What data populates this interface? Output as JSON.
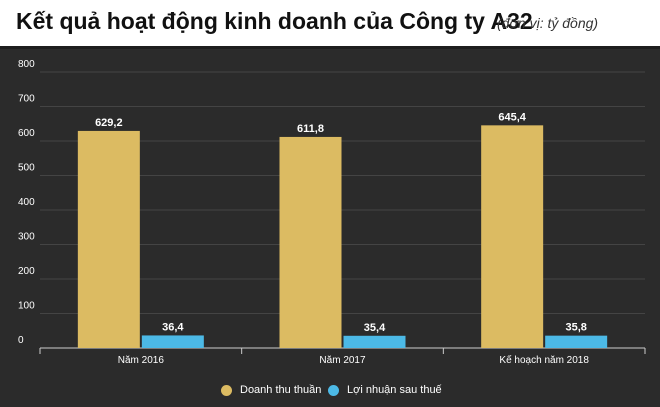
{
  "header": {
    "title": "Kết quả hoạt động kinh doanh của Công ty A32",
    "unit": "(đơn vị: tỷ đồng)"
  },
  "colors": {
    "revenue": "#dcbb62",
    "profit": "#4cb9e6",
    "grid": "#444444",
    "axis": "#cccccc",
    "text": "#ffffff",
    "header_bg": "#ffffff"
  },
  "chart_data": {
    "type": "bar",
    "title": "Kết quả hoạt động kinh doanh của Công ty A32",
    "subtitle": "(đơn vị: tỷ đồng)",
    "categories": [
      "Năm 2016",
      "Năm 2017",
      "Kế hoạch năm 2018"
    ],
    "series": [
      {
        "name": "Doanh thu thuần",
        "values": [
          629.2,
          611.8,
          645.4
        ],
        "labels": [
          "629,2",
          "611,8",
          "645,4"
        ],
        "color": "#dcbb62"
      },
      {
        "name": "Lợi nhuận sau thuế",
        "values": [
          36.4,
          35.4,
          35.8
        ],
        "labels": [
          "36,4",
          "35,4",
          "35,8"
        ],
        "color": "#4cb9e6"
      }
    ],
    "yticks": [
      0,
      100,
      200,
      300,
      400,
      500,
      600,
      700,
      800
    ],
    "ylim": [
      0,
      800
    ],
    "grid": true,
    "legend": "bottom-center"
  }
}
